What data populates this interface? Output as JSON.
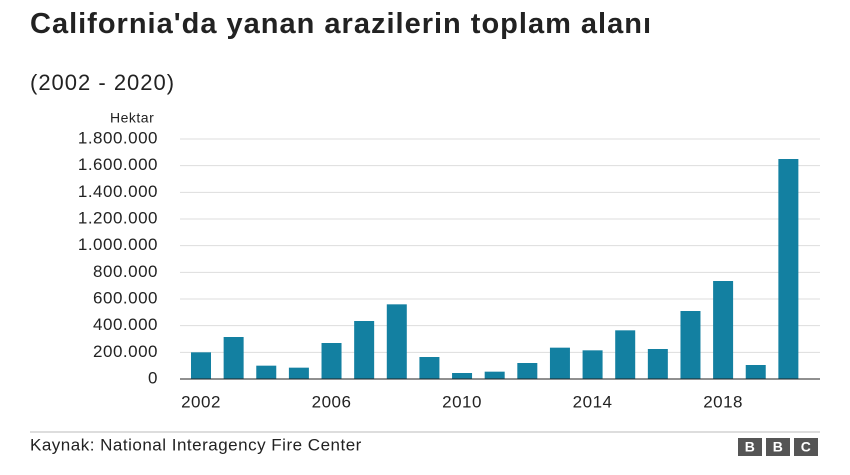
{
  "chart_data": {
    "type": "bar",
    "title": "California'da yanan arazilerin toplam alanı",
    "subtitle": "(2002 - 2020)",
    "y_label": "Hektar",
    "source": "Kaynak: National Interagency Fire Center",
    "logo": [
      "B",
      "B",
      "C"
    ],
    "categories": [
      "2002",
      null,
      null,
      null,
      "2006",
      null,
      null,
      null,
      "2010",
      null,
      null,
      null,
      "2014",
      null,
      null,
      null,
      "2018",
      null,
      null
    ],
    "values": [
      200000,
      315000,
      100000,
      85000,
      270000,
      435000,
      560000,
      165000,
      45000,
      55000,
      120000,
      235000,
      215000,
      365000,
      225000,
      510000,
      735000,
      105000,
      1650000
    ],
    "color": "#1380a1",
    "ylim": [
      0,
      1800000
    ],
    "yticks": [
      0,
      {
        "value": 200000,
        "label": "200.000"
      },
      {
        "value": 400000,
        "label": "400.000"
      },
      {
        "value": 600000,
        "label": "600.000"
      },
      {
        "value": 800000,
        "label": "800.000"
      },
      {
        "value": 1000000,
        "label": "1.000.000"
      },
      {
        "value": 1200000,
        "label": "1.200.000"
      },
      {
        "value": 1400000,
        "label": "1.400.000"
      },
      {
        "value": 1600000,
        "label": "1.600.000"
      },
      {
        "value": 1800000,
        "label": "1.800.000"
      }
    ],
    "grid": true
  }
}
